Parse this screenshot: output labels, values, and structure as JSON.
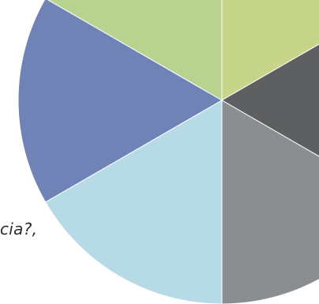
{
  "chart_data": {
    "type": "pie",
    "slices": [
      {
        "value": 1,
        "color": "#c6d58a"
      },
      {
        "value": 1,
        "color": "#5e5f61"
      },
      {
        "value": 1,
        "color": "#8b8e91"
      },
      {
        "value": 1,
        "color": "#b6dbe6"
      },
      {
        "value": 1,
        "color": "#6f83b7"
      },
      {
        "value": 1,
        "color": "#b7d38f"
      }
    ]
  },
  "fragment_text": "cia?,"
}
